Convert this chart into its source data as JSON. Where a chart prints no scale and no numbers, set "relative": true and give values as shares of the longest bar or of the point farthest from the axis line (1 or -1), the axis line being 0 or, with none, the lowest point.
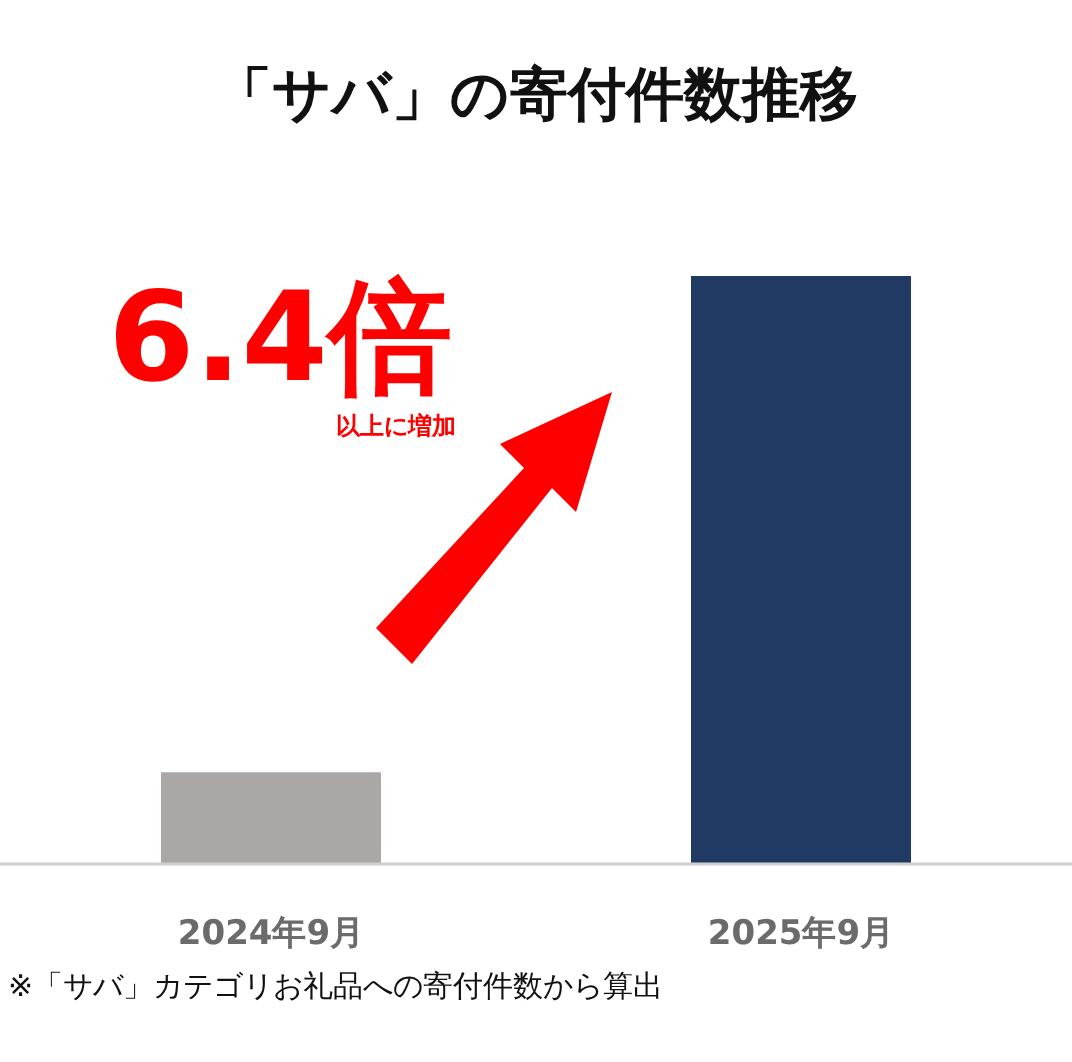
{
  "chart_data": {
    "type": "bar",
    "title": "「サバ」の寄付件数推移",
    "categories": [
      "2024年9月",
      "2025年9月"
    ],
    "values": [
      0.156,
      1
    ],
    "colors": [
      "#aba7a5",
      "#213a63"
    ],
    "relative": true,
    "annotations": [
      "6.4倍",
      "以上に増加",
      "※「サバ」カテゴリお礼品への寄付件数から算出"
    ]
  }
}
